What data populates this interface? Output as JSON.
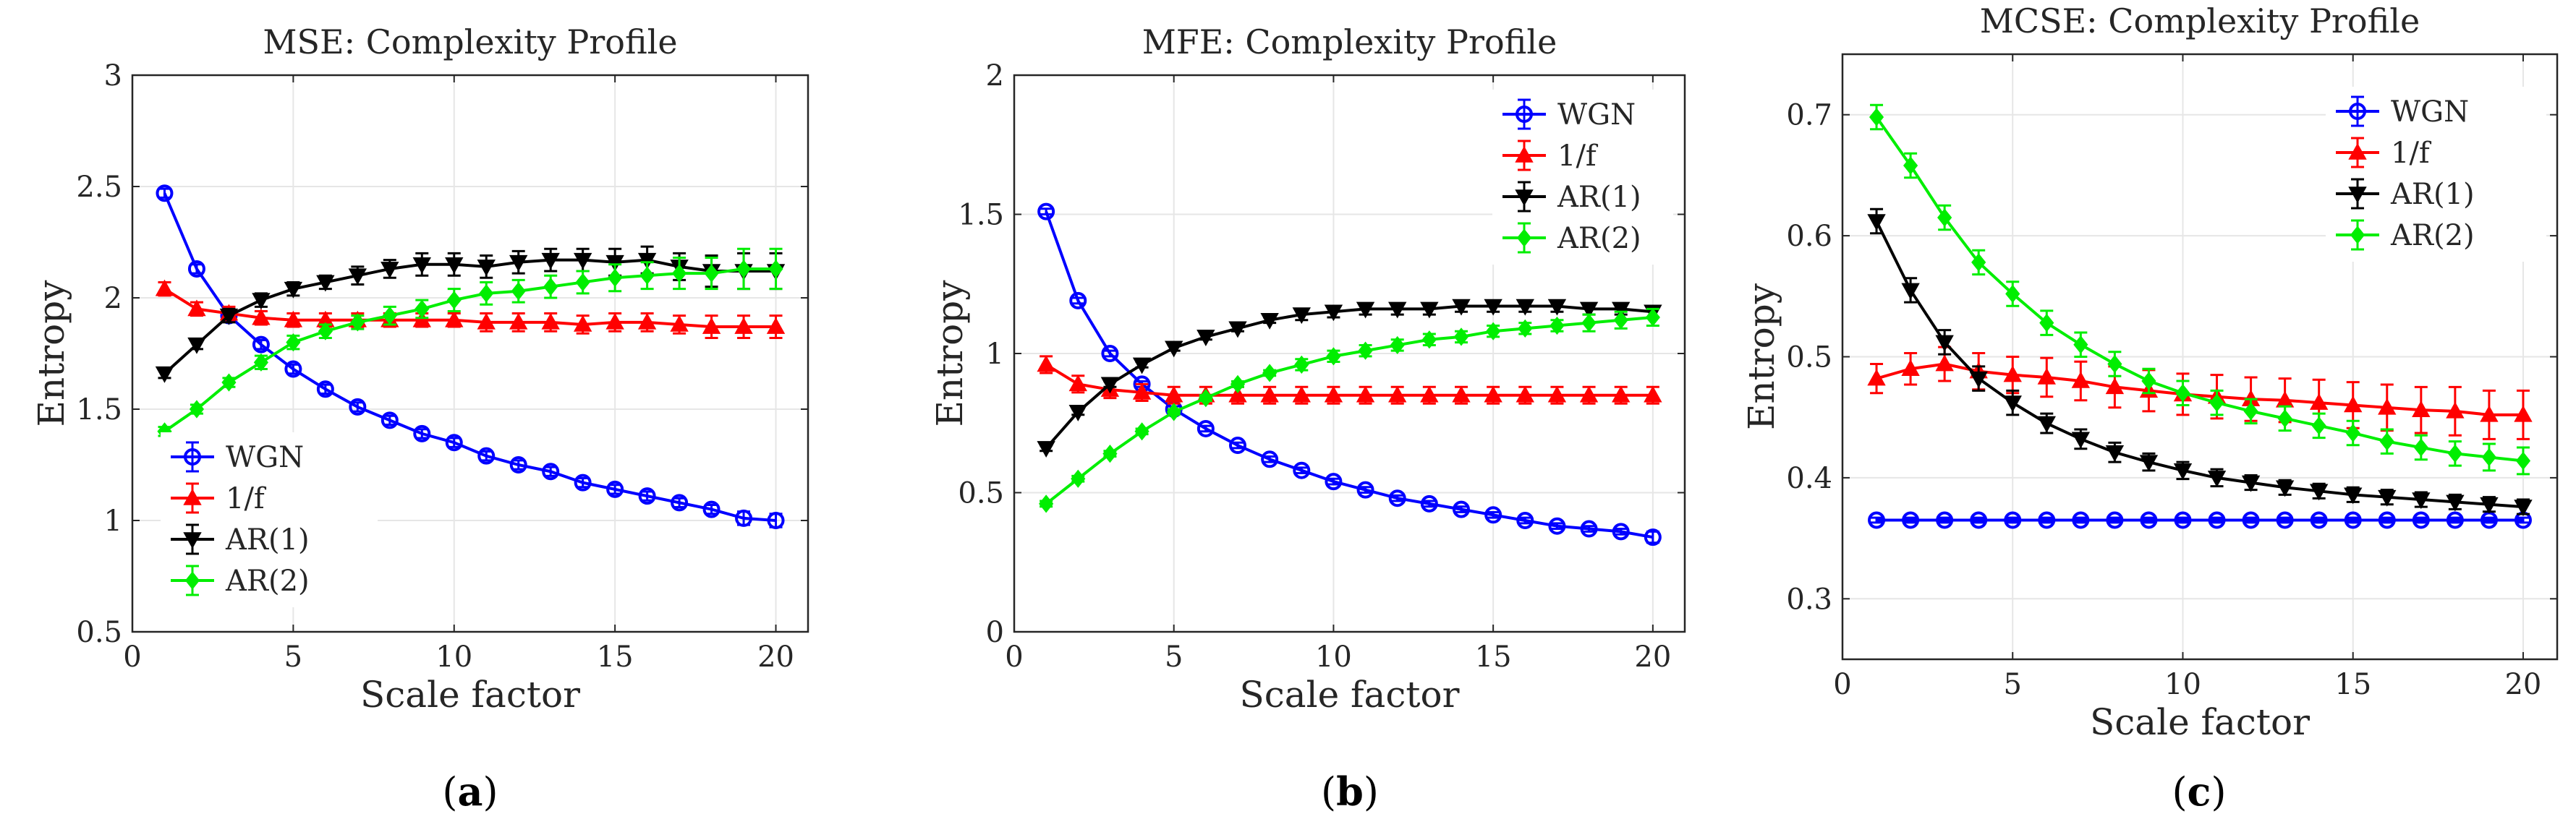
{
  "chart_data": [
    {
      "type": "line",
      "panel_label": "a",
      "title": "MSE: Complexity Profile",
      "xlabel": "Scale factor",
      "ylabel": "Entropy",
      "xlim": [
        0,
        21
      ],
      "ylim": [
        0.5,
        3
      ],
      "xticks": [
        0,
        5,
        10,
        15,
        20
      ],
      "yticks": [
        0.5,
        1,
        1.5,
        2,
        2.5,
        3
      ],
      "ytick_labels": [
        "0.5",
        "1",
        "1.5",
        "2",
        "2.5",
        "3"
      ],
      "grid": true,
      "legend_position": "lower-left",
      "x": [
        1,
        2,
        3,
        4,
        5,
        6,
        7,
        8,
        9,
        10,
        11,
        12,
        13,
        14,
        15,
        16,
        17,
        18,
        19,
        20
      ],
      "series": [
        {
          "name": "WGN",
          "color": "#0000ff",
          "marker": "circle",
          "values": [
            2.47,
            2.13,
            1.92,
            1.79,
            1.68,
            1.59,
            1.51,
            1.45,
            1.39,
            1.35,
            1.29,
            1.25,
            1.22,
            1.17,
            1.14,
            1.11,
            1.08,
            1.05,
            1.01,
            1.0
          ],
          "errors": [
            0.02,
            0.02,
            0.02,
            0.02,
            0.02,
            0.02,
            0.02,
            0.02,
            0.02,
            0.02,
            0.02,
            0.02,
            0.02,
            0.02,
            0.02,
            0.02,
            0.02,
            0.02,
            0.03,
            0.03
          ]
        },
        {
          "name": "1/f",
          "color": "#ff0000",
          "marker": "triangle-up",
          "values": [
            2.04,
            1.95,
            1.93,
            1.91,
            1.9,
            1.9,
            1.9,
            1.9,
            1.9,
            1.9,
            1.89,
            1.89,
            1.89,
            1.88,
            1.89,
            1.89,
            1.88,
            1.87,
            1.87,
            1.87
          ],
          "errors": [
            0.03,
            0.03,
            0.03,
            0.03,
            0.03,
            0.03,
            0.03,
            0.03,
            0.03,
            0.03,
            0.04,
            0.04,
            0.04,
            0.04,
            0.04,
            0.04,
            0.04,
            0.05,
            0.05,
            0.05
          ]
        },
        {
          "name": "AR(1)",
          "color": "#000000",
          "marker": "triangle-down",
          "values": [
            1.66,
            1.79,
            1.92,
            1.99,
            2.04,
            2.07,
            2.1,
            2.13,
            2.15,
            2.15,
            2.14,
            2.16,
            2.17,
            2.17,
            2.16,
            2.17,
            2.14,
            2.12,
            2.12,
            2.12
          ],
          "errors": [
            0.02,
            0.02,
            0.03,
            0.03,
            0.03,
            0.03,
            0.04,
            0.04,
            0.05,
            0.05,
            0.05,
            0.05,
            0.05,
            0.05,
            0.06,
            0.06,
            0.06,
            0.07,
            0.08,
            0.08
          ]
        },
        {
          "name": "AR(2)",
          "color": "#00ee00",
          "marker": "diamond",
          "values": [
            1.4,
            1.5,
            1.62,
            1.71,
            1.8,
            1.85,
            1.89,
            1.92,
            1.95,
            1.99,
            2.02,
            2.03,
            2.05,
            2.07,
            2.09,
            2.1,
            2.11,
            2.11,
            2.13,
            2.13
          ],
          "errors": [
            0.02,
            0.02,
            0.02,
            0.03,
            0.03,
            0.03,
            0.03,
            0.04,
            0.04,
            0.05,
            0.05,
            0.05,
            0.05,
            0.05,
            0.06,
            0.06,
            0.07,
            0.07,
            0.09,
            0.09
          ]
        }
      ]
    },
    {
      "type": "line",
      "panel_label": "b",
      "title": "MFE: Complexity Profile",
      "xlabel": "Scale factor",
      "ylabel": "Entropy",
      "xlim": [
        0,
        21
      ],
      "ylim": [
        0,
        2
      ],
      "xticks": [
        0,
        5,
        10,
        15,
        20
      ],
      "yticks": [
        0,
        0.5,
        1,
        1.5,
        2
      ],
      "ytick_labels": [
        "0",
        "0.5",
        "1",
        "1.5",
        "2"
      ],
      "grid": true,
      "legend_position": "top-right",
      "x": [
        1,
        2,
        3,
        4,
        5,
        6,
        7,
        8,
        9,
        10,
        11,
        12,
        13,
        14,
        15,
        16,
        17,
        18,
        19,
        20
      ],
      "series": [
        {
          "name": "WGN",
          "color": "#0000ff",
          "marker": "circle",
          "values": [
            1.51,
            1.19,
            1.0,
            0.89,
            0.8,
            0.73,
            0.67,
            0.62,
            0.58,
            0.54,
            0.51,
            0.48,
            0.46,
            0.44,
            0.42,
            0.4,
            0.38,
            0.37,
            0.36,
            0.34
          ],
          "errors": [
            0.01,
            0.01,
            0.01,
            0.01,
            0.01,
            0.01,
            0.01,
            0.01,
            0.01,
            0.01,
            0.01,
            0.01,
            0.01,
            0.01,
            0.01,
            0.01,
            0.01,
            0.01,
            0.01,
            0.02
          ]
        },
        {
          "name": "1/f",
          "color": "#ff0000",
          "marker": "triangle-up",
          "values": [
            0.96,
            0.89,
            0.87,
            0.86,
            0.85,
            0.85,
            0.85,
            0.85,
            0.85,
            0.85,
            0.85,
            0.85,
            0.85,
            0.85,
            0.85,
            0.85,
            0.85,
            0.85,
            0.85,
            0.85
          ],
          "errors": [
            0.03,
            0.03,
            0.03,
            0.03,
            0.03,
            0.03,
            0.03,
            0.03,
            0.03,
            0.03,
            0.03,
            0.03,
            0.03,
            0.03,
            0.03,
            0.03,
            0.03,
            0.03,
            0.03,
            0.03
          ]
        },
        {
          "name": "AR(1)",
          "color": "#000000",
          "marker": "triangle-down",
          "values": [
            0.66,
            0.79,
            0.89,
            0.96,
            1.02,
            1.06,
            1.09,
            1.12,
            1.14,
            1.15,
            1.16,
            1.16,
            1.16,
            1.17,
            1.17,
            1.17,
            1.17,
            1.16,
            1.16,
            1.15
          ],
          "errors": [
            0.01,
            0.01,
            0.01,
            0.01,
            0.01,
            0.01,
            0.01,
            0.01,
            0.02,
            0.02,
            0.02,
            0.02,
            0.02,
            0.02,
            0.02,
            0.02,
            0.02,
            0.02,
            0.02,
            0.02
          ]
        },
        {
          "name": "AR(2)",
          "color": "#00ee00",
          "marker": "diamond",
          "values": [
            0.46,
            0.55,
            0.64,
            0.72,
            0.79,
            0.84,
            0.89,
            0.93,
            0.96,
            0.99,
            1.01,
            1.03,
            1.05,
            1.06,
            1.08,
            1.09,
            1.1,
            1.11,
            1.12,
            1.13
          ],
          "errors": [
            0.01,
            0.01,
            0.01,
            0.01,
            0.01,
            0.01,
            0.01,
            0.01,
            0.02,
            0.02,
            0.02,
            0.02,
            0.02,
            0.02,
            0.02,
            0.02,
            0.02,
            0.03,
            0.03,
            0.03
          ]
        }
      ]
    },
    {
      "type": "line",
      "panel_label": "c",
      "title": "MCSE: Complexity Profile",
      "xlabel": "Scale factor",
      "ylabel": "Entropy",
      "xlim": [
        0,
        21
      ],
      "ylim": [
        0.25,
        0.75
      ],
      "xticks": [
        0,
        5,
        10,
        15,
        20
      ],
      "yticks": [
        0.3,
        0.4,
        0.5,
        0.6,
        0.7
      ],
      "ytick_labels": [
        "0.3",
        "0.4",
        "0.5",
        "0.6",
        "0.7"
      ],
      "grid": true,
      "legend_position": "top-right",
      "x": [
        1,
        2,
        3,
        4,
        5,
        6,
        7,
        8,
        9,
        10,
        11,
        12,
        13,
        14,
        15,
        16,
        17,
        18,
        19,
        20
      ],
      "series": [
        {
          "name": "WGN",
          "color": "#0000ff",
          "marker": "circle",
          "values": [
            0.365,
            0.365,
            0.365,
            0.365,
            0.365,
            0.365,
            0.365,
            0.365,
            0.365,
            0.365,
            0.365,
            0.365,
            0.365,
            0.365,
            0.365,
            0.365,
            0.365,
            0.365,
            0.365,
            0.365
          ],
          "errors": [
            0.002,
            0.002,
            0.002,
            0.002,
            0.002,
            0.002,
            0.002,
            0.002,
            0.002,
            0.002,
            0.002,
            0.002,
            0.002,
            0.002,
            0.002,
            0.002,
            0.002,
            0.002,
            0.002,
            0.002
          ]
        },
        {
          "name": "1/f",
          "color": "#ff0000",
          "marker": "triangle-up",
          "values": [
            0.482,
            0.49,
            0.494,
            0.488,
            0.485,
            0.483,
            0.48,
            0.475,
            0.472,
            0.469,
            0.467,
            0.465,
            0.464,
            0.462,
            0.46,
            0.458,
            0.456,
            0.455,
            0.452,
            0.452
          ],
          "errors": [
            0.012,
            0.013,
            0.014,
            0.015,
            0.015,
            0.016,
            0.016,
            0.017,
            0.017,
            0.017,
            0.018,
            0.018,
            0.018,
            0.019,
            0.019,
            0.019,
            0.019,
            0.02,
            0.02,
            0.02
          ]
        },
        {
          "name": "AR(1)",
          "color": "#000000",
          "marker": "triangle-down",
          "values": [
            0.612,
            0.555,
            0.512,
            0.482,
            0.462,
            0.445,
            0.432,
            0.421,
            0.413,
            0.406,
            0.4,
            0.396,
            0.392,
            0.389,
            0.386,
            0.384,
            0.382,
            0.38,
            0.378,
            0.376
          ],
          "errors": [
            0.01,
            0.01,
            0.01,
            0.01,
            0.01,
            0.008,
            0.008,
            0.008,
            0.007,
            0.007,
            0.007,
            0.006,
            0.006,
            0.006,
            0.006,
            0.006,
            0.006,
            0.006,
            0.006,
            0.006
          ]
        },
        {
          "name": "AR(2)",
          "color": "#00ee00",
          "marker": "diamond",
          "values": [
            0.698,
            0.658,
            0.615,
            0.578,
            0.552,
            0.528,
            0.51,
            0.494,
            0.48,
            0.47,
            0.462,
            0.455,
            0.449,
            0.443,
            0.437,
            0.43,
            0.425,
            0.42,
            0.417,
            0.414
          ],
          "errors": [
            0.01,
            0.01,
            0.01,
            0.01,
            0.01,
            0.01,
            0.01,
            0.01,
            0.01,
            0.01,
            0.01,
            0.01,
            0.01,
            0.01,
            0.01,
            0.01,
            0.01,
            0.01,
            0.011,
            0.011
          ]
        }
      ]
    }
  ]
}
